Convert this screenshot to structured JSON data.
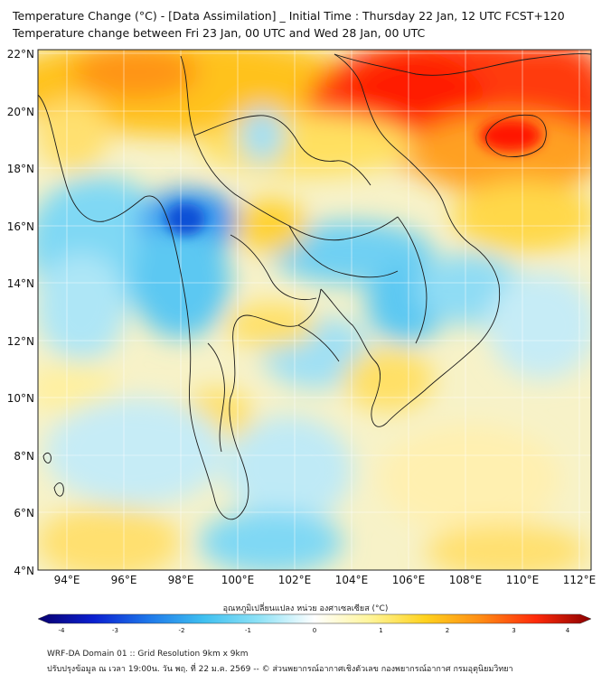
{
  "header": {
    "title_line1": "Temperature Change (°C) - [Data Assimilation] _ Initial Time : Thursday 22 Jan, 12 UTC FCST+120",
    "title_line2": "Temperature change between Fri 23 Jan, 00 UTC and Wed 28 Jan, 00 UTC"
  },
  "map": {
    "lat_labels": [
      "22°N",
      "20°N",
      "18°N",
      "16°N",
      "14°N",
      "12°N",
      "10°N",
      "8°N",
      "6°N",
      "4°N"
    ],
    "lon_labels": [
      "94°E",
      "96°E",
      "98°E",
      "100°E",
      "102°E",
      "104°E",
      "106°E",
      "108°E",
      "110°E",
      "112°E"
    ]
  },
  "colorbar": {
    "title": "อุณหภูมิเปลี่ยนแปลง หน่วย องศาเซลเซียส (°C)",
    "ticks": [
      "-4",
      "-3",
      "-2",
      "-1",
      "0",
      "1",
      "2",
      "3",
      "4"
    ],
    "range": [
      -4,
      4
    ],
    "colors": [
      "#08006e",
      "#0b1fd0",
      "#1e78ea",
      "#3fc0f0",
      "#8fe2f6",
      "#ffffff",
      "#fff59a",
      "#ffd21e",
      "#ff8c14",
      "#ff2a0a",
      "#8a0000"
    ]
  },
  "footer": {
    "line1": "WRF-DA Domain 01 :: Grid Resolution 9km x 9km",
    "line2": "ปรับปรุงข้อมูล ณ เวลา 19:00น. วัน พฤ. ที่ 22 ม.ค. 2569 -- © ส่วนพยากรณ์อากาศเชิงตัวเลข กองพยากรณ์อากาศ กรมอุตุนิยมวิทยา"
  }
}
